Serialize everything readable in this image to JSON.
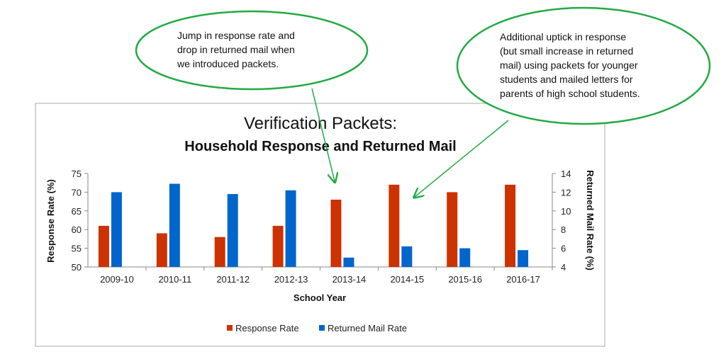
{
  "chart_data": {
    "type": "bar",
    "title": "Verification Packets:",
    "subtitle": "Household Response and Returned Mail",
    "xlabel": "School Year",
    "ylabel": "Response Rate (%)",
    "y2label": "Returned Mail Rate (%)",
    "categories": [
      "2009-10",
      "2010-11",
      "2011-12",
      "2012-13",
      "2013-14",
      "2014-15",
      "2015-16",
      "2016-17"
    ],
    "ylim": [
      50,
      75
    ],
    "yticks": [
      50,
      55,
      60,
      65,
      70,
      75
    ],
    "y2lim": [
      4,
      14
    ],
    "y2ticks": [
      4,
      6,
      8,
      10,
      12,
      14
    ],
    "grid": false,
    "legend": "bottom",
    "series": [
      {
        "name": "Response Rate",
        "axis": "left",
        "color": "#cc3300",
        "values": [
          61,
          59,
          58,
          61,
          68,
          72,
          70,
          72
        ]
      },
      {
        "name": "Returned Mail Rate",
        "axis": "right",
        "color": "#0066cc",
        "values": [
          12,
          12.9,
          11.8,
          12.2,
          5,
          6.2,
          6,
          5.8
        ]
      }
    ],
    "annotations": [
      {
        "id": "callout1",
        "text": "Jump in response rate and\ndrop in returned  mail when\nwe introduced  packets.",
        "points_to": "2013-14"
      },
      {
        "id": "callout2",
        "text": "Additional uptick in response\n(but small increase in returned\nmail) using packets for younger\nstudents  and mailed letters for\nparents of high  school students.",
        "points_to": "2014-15"
      }
    ]
  },
  "colors": {
    "callout_border": "#22aa44",
    "axis": "#888888",
    "frame": "#aaaaaa"
  }
}
